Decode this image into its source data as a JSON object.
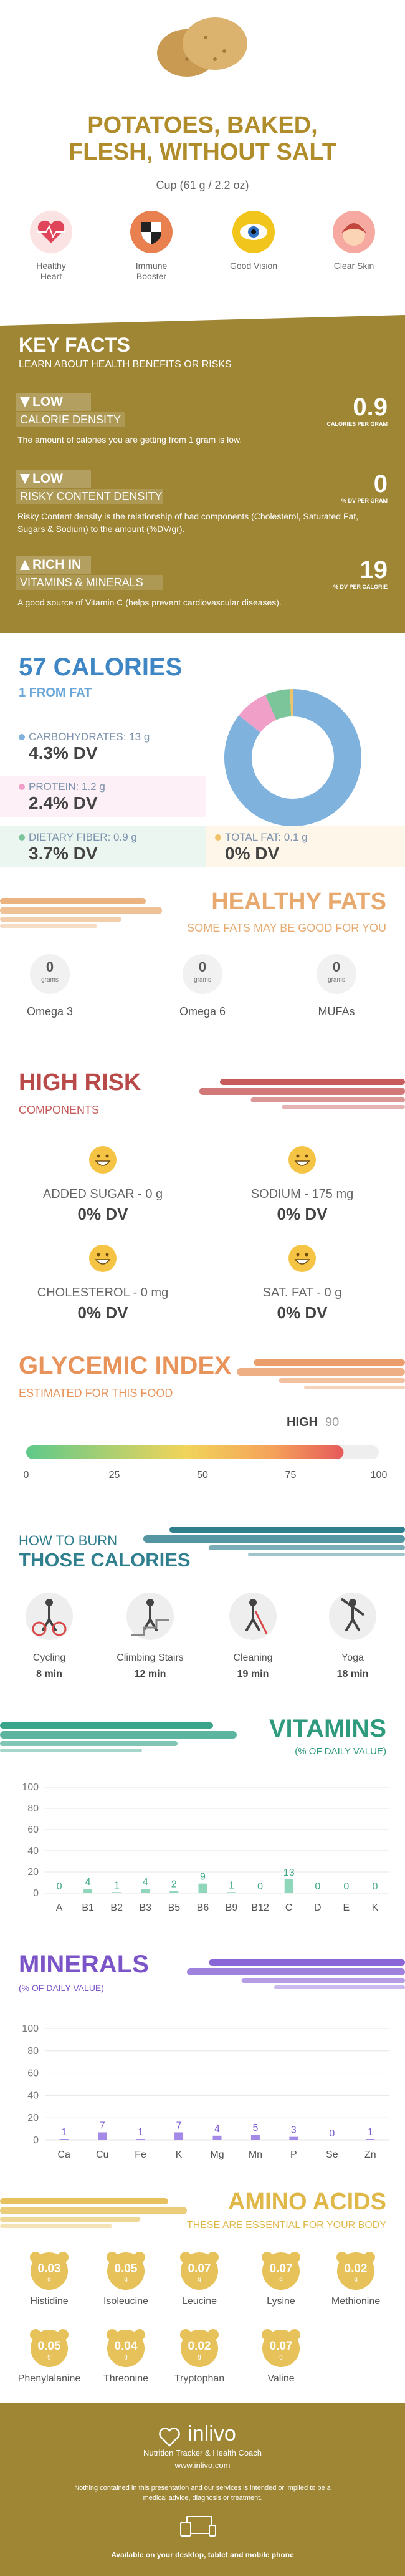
{
  "header": {
    "title": "POTATOES, BAKED, FLESH, WITHOUT SALT",
    "serving": "Cup (61 g / 2.2 oz)"
  },
  "benefits": [
    "Healthy Heart",
    "Immune Booster",
    "Good Vision",
    "Clear Skin"
  ],
  "key_facts": {
    "title": "KEY FACTS",
    "subtitle": "LEARN ABOUT HEALTH BENEFITS OR RISKS",
    "items": [
      {
        "level": "LOW",
        "name": "CALORIE DENSITY",
        "value": 0.9,
        "unit": "CALORIES PER GRAM",
        "text": "The amount of calories you are getting from 1 gram is low."
      },
      {
        "level": "LOW",
        "name": "RISKY CONTENT DENSITY",
        "value": 0,
        "unit": "% DV PER GRAM",
        "text": "Risky Content density is the relationship of bad components (Cholesterol, Saturated Fat, Sugars & Sodium) to the amount (%DV/gr)."
      },
      {
        "level": "RICH IN",
        "name": "VITAMINS & MINERALS",
        "value": 19,
        "unit": "% DV PER CALORIE",
        "text": "A good source of Vitamin C (helps prevent cardiovascular diseases)."
      }
    ]
  },
  "calories": {
    "title": "57 CALORIES",
    "subtitle": "1 FROM FAT",
    "nutrients": [
      {
        "label": "CARBOHYDRATES: 13 g",
        "grams": 13,
        "dv": "4.3% DV",
        "color": "#7fb2dd"
      },
      {
        "label": "PROTEIN: 1.2 g",
        "grams": 1.2,
        "dv": "2.4% DV",
        "color": "#f0a0c8"
      },
      {
        "label": "DIETARY FIBER: 0.9 g",
        "grams": 0.9,
        "dv": "3.7% DV",
        "color": "#7cc49a"
      },
      {
        "label": "TOTAL FAT: 0.1 g",
        "grams": 0.1,
        "dv": "0% DV",
        "color": "#f2c46a"
      }
    ]
  },
  "healthy_fats": {
    "title": "HEALTHY FATS",
    "subtitle": "SOME FATS MAY BE GOOD FOR YOU",
    "items": [
      {
        "value": 0,
        "unit": "grams",
        "name": "Omega 3"
      },
      {
        "value": 0,
        "unit": "grams",
        "name": "Omega 6"
      },
      {
        "value": 0,
        "unit": "grams",
        "name": "MUFAs"
      }
    ]
  },
  "high_risk": {
    "title": "HIGH RISK",
    "subtitle": "COMPONENTS",
    "items": [
      {
        "label": "ADDED SUGAR - 0 g",
        "dv": "0% DV"
      },
      {
        "label": "SODIUM - 175 mg",
        "dv": "0% DV"
      },
      {
        "label": "CHOLESTEROL - 0 mg",
        "dv": "0% DV"
      },
      {
        "label": "SAT. FAT - 0 g",
        "dv": "0% DV"
      }
    ]
  },
  "glycemic": {
    "title": "GLYCEMIC INDEX",
    "subtitle": "ESTIMATED FOR THIS FOOD",
    "level": "HIGH",
    "value": 90,
    "xlim": [
      0,
      100
    ],
    "xticks": [
      0,
      25,
      50,
      75,
      100
    ]
  },
  "burn": {
    "title_top": "HOW TO BURN",
    "title": "THOSE CALORIES",
    "items": [
      {
        "name": "Cycling",
        "time": "8 min"
      },
      {
        "name": "Climbing Stairs",
        "time": "12 min"
      },
      {
        "name": "Cleaning",
        "time": "19 min"
      },
      {
        "name": "Yoga",
        "time": "18 min"
      }
    ]
  },
  "vitamins": {
    "type": "bar",
    "title": "VITAMINS",
    "subtitle": "(% OF DAILY VALUE)",
    "categories": [
      "A",
      "B1",
      "B2",
      "B3",
      "B5",
      "B6",
      "B9",
      "B12",
      "C",
      "D",
      "E",
      "K"
    ],
    "values": [
      0,
      4,
      1,
      4,
      2,
      9,
      1,
      0,
      13,
      0,
      0,
      0
    ],
    "ylim": [
      0,
      100
    ],
    "yticks": [
      0,
      20,
      40,
      60,
      80,
      100
    ],
    "color": "#8fd6bb",
    "label_color": "#3fa98a"
  },
  "minerals": {
    "type": "bar",
    "title": "MINERALS",
    "subtitle": "(% OF DAILY VALUE)",
    "categories": [
      "Ca",
      "Cu",
      "Fe",
      "K",
      "Mg",
      "Mn",
      "P",
      "Se",
      "Zn"
    ],
    "values": [
      1,
      7,
      1,
      7,
      4,
      5,
      3,
      0,
      1
    ],
    "ylim": [
      0,
      100
    ],
    "yticks": [
      0,
      20,
      40,
      60,
      80,
      100
    ],
    "color": "#a48ae6",
    "label_color": "#7a5bd0"
  },
  "amino_acids": {
    "title": "AMINO ACIDS",
    "subtitle": "THESE ARE ESSENTIAL FOR YOUR BODY",
    "items": [
      {
        "name": "Histidine",
        "value": 0.03,
        "unit": "g"
      },
      {
        "name": "Isoleucine",
        "value": 0.05,
        "unit": "g"
      },
      {
        "name": "Leucine",
        "value": 0.07,
        "unit": "g"
      },
      {
        "name": "Lysine",
        "value": 0.07,
        "unit": "g"
      },
      {
        "name": "Methionine",
        "value": 0.02,
        "unit": "g"
      },
      {
        "name": "Phenylalanine",
        "value": 0.05,
        "unit": "g"
      },
      {
        "name": "Threonine",
        "value": 0.04,
        "unit": "g"
      },
      {
        "name": "Tryptophan",
        "value": 0.02,
        "unit": "g"
      },
      {
        "name": "Valine",
        "value": 0.07,
        "unit": "g"
      }
    ]
  },
  "footer": {
    "brand": "inlivo",
    "tagline": "Nutrition Tracker & Health Coach",
    "url": "www.inlivo.com",
    "disclaimer": "Nothing contained in this presentation and our services is intended or implied to be a medical advice, diagnosis or treatment.",
    "available": "Available on your desktop, tablet and mobile phone"
  }
}
